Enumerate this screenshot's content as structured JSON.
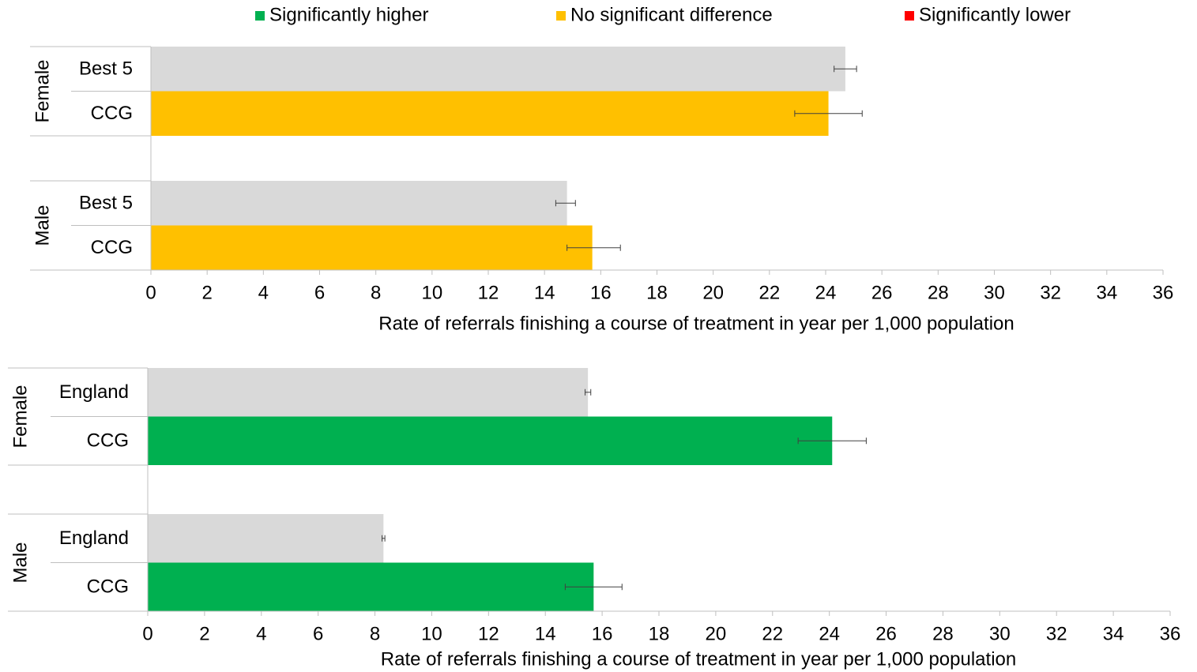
{
  "legend": [
    {
      "name": "Significantly higher",
      "color": "#00b050"
    },
    {
      "name": "No significant difference",
      "color": "#ffc000"
    },
    {
      "name": "Significantly lower",
      "color": "#ff0000"
    }
  ],
  "chart_data": [
    {
      "type": "bar",
      "orientation": "horizontal",
      "xlabel": "Rate of referrals finishing a course of treatment in year per 1,000 population",
      "xlim": [
        0,
        36
      ],
      "xticks": [
        0,
        2,
        4,
        6,
        8,
        10,
        12,
        14,
        16,
        18,
        20,
        22,
        24,
        26,
        28,
        30,
        32,
        34,
        36
      ],
      "groups": [
        {
          "name": "Female",
          "categories": [
            "Best 5",
            "CCG"
          ],
          "values": [
            24.7,
            24.1
          ],
          "error_low": [
            24.3,
            22.9
          ],
          "error_high": [
            25.1,
            25.3
          ],
          "colors": [
            "#d9d9d9",
            "#ffc000"
          ]
        },
        {
          "name": "Male",
          "categories": [
            "Best 5",
            "CCG"
          ],
          "values": [
            14.8,
            15.7
          ],
          "error_low": [
            14.4,
            14.8
          ],
          "error_high": [
            15.1,
            16.7
          ],
          "colors": [
            "#d9d9d9",
            "#ffc000"
          ]
        }
      ]
    },
    {
      "type": "bar",
      "orientation": "horizontal",
      "xlabel": "Rate of referrals finishing a course of treatment in year per 1,000 population",
      "xlim": [
        0,
        36
      ],
      "xticks": [
        0,
        2,
        4,
        6,
        8,
        10,
        12,
        14,
        16,
        18,
        20,
        22,
        24,
        26,
        28,
        30,
        32,
        34,
        36
      ],
      "groups": [
        {
          "name": "Female",
          "categories": [
            "England",
            "CCG"
          ],
          "values": [
            15.5,
            24.1
          ],
          "error_low": [
            15.4,
            22.9
          ],
          "error_high": [
            15.6,
            25.3
          ],
          "colors": [
            "#d9d9d9",
            "#00b050"
          ]
        },
        {
          "name": "Male",
          "categories": [
            "England",
            "CCG"
          ],
          "values": [
            8.3,
            15.7
          ],
          "error_low": [
            8.25,
            14.7
          ],
          "error_high": [
            8.35,
            16.7
          ],
          "colors": [
            "#d9d9d9",
            "#00b050"
          ]
        }
      ]
    }
  ]
}
